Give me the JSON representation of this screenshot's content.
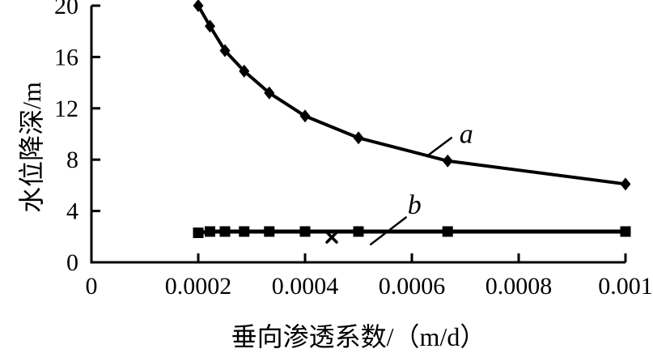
{
  "figure": {
    "background": "#ffffff",
    "line_color": "#000000"
  },
  "chart_data": {
    "type": "line",
    "title": "",
    "xlabel": "垂向渗透系数/（m/d）",
    "ylabel": "水位降深/m",
    "xlim": [
      0,
      0.001
    ],
    "ylim": [
      0,
      20
    ],
    "x_ticks": [
      0,
      0.0002,
      0.0004,
      0.0006,
      0.0008,
      0.001
    ],
    "x_tick_labels": [
      "0",
      "0.0002",
      "0.0004",
      "0.0006",
      "0.0008",
      "0.001"
    ],
    "y_ticks": [
      0,
      4,
      8,
      12,
      16,
      20
    ],
    "y_tick_labels": [
      "0",
      "4",
      "8",
      "12",
      "16",
      "20"
    ],
    "grid": false,
    "legend_position": "none",
    "series": [
      {
        "name": "a",
        "label": "a",
        "marker": "diamond",
        "line_width": 4,
        "x": [
          0.0002,
          0.000222,
          0.00025,
          0.000286,
          0.000333,
          0.0004,
          0.0005,
          0.000667,
          0.001
        ],
        "y": [
          20,
          18.4,
          16.5,
          14.9,
          13.2,
          11.4,
          9.7,
          7.9,
          6.1
        ]
      },
      {
        "name": "b",
        "label": "b",
        "marker": "square",
        "line_width": 5,
        "x": [
          0.0002,
          0.000222,
          0.00025,
          0.000286,
          0.000333,
          0.0004,
          0.0005,
          0.000667,
          0.001
        ],
        "y": [
          2.3,
          2.4,
          2.4,
          2.4,
          2.4,
          2.4,
          2.4,
          2.4,
          2.4
        ]
      },
      {
        "name": "lone-x-point",
        "label": "",
        "marker": "x",
        "line_width": 0,
        "x": [
          0.00045
        ],
        "y": [
          1.95
        ]
      }
    ],
    "annotations": [
      {
        "text": "a",
        "x": 0.000689,
        "y": 9.3,
        "leader": {
          "x1": 0.000629,
          "y1": 8.3,
          "x2": 0.000674,
          "y2": 9.7
        }
      },
      {
        "text": "b",
        "x": 0.000592,
        "y": 3.8,
        "leader": {
          "x1": 0.000523,
          "y1": 1.4,
          "x2": 0.000589,
          "y2": 3.5
        }
      }
    ]
  }
}
